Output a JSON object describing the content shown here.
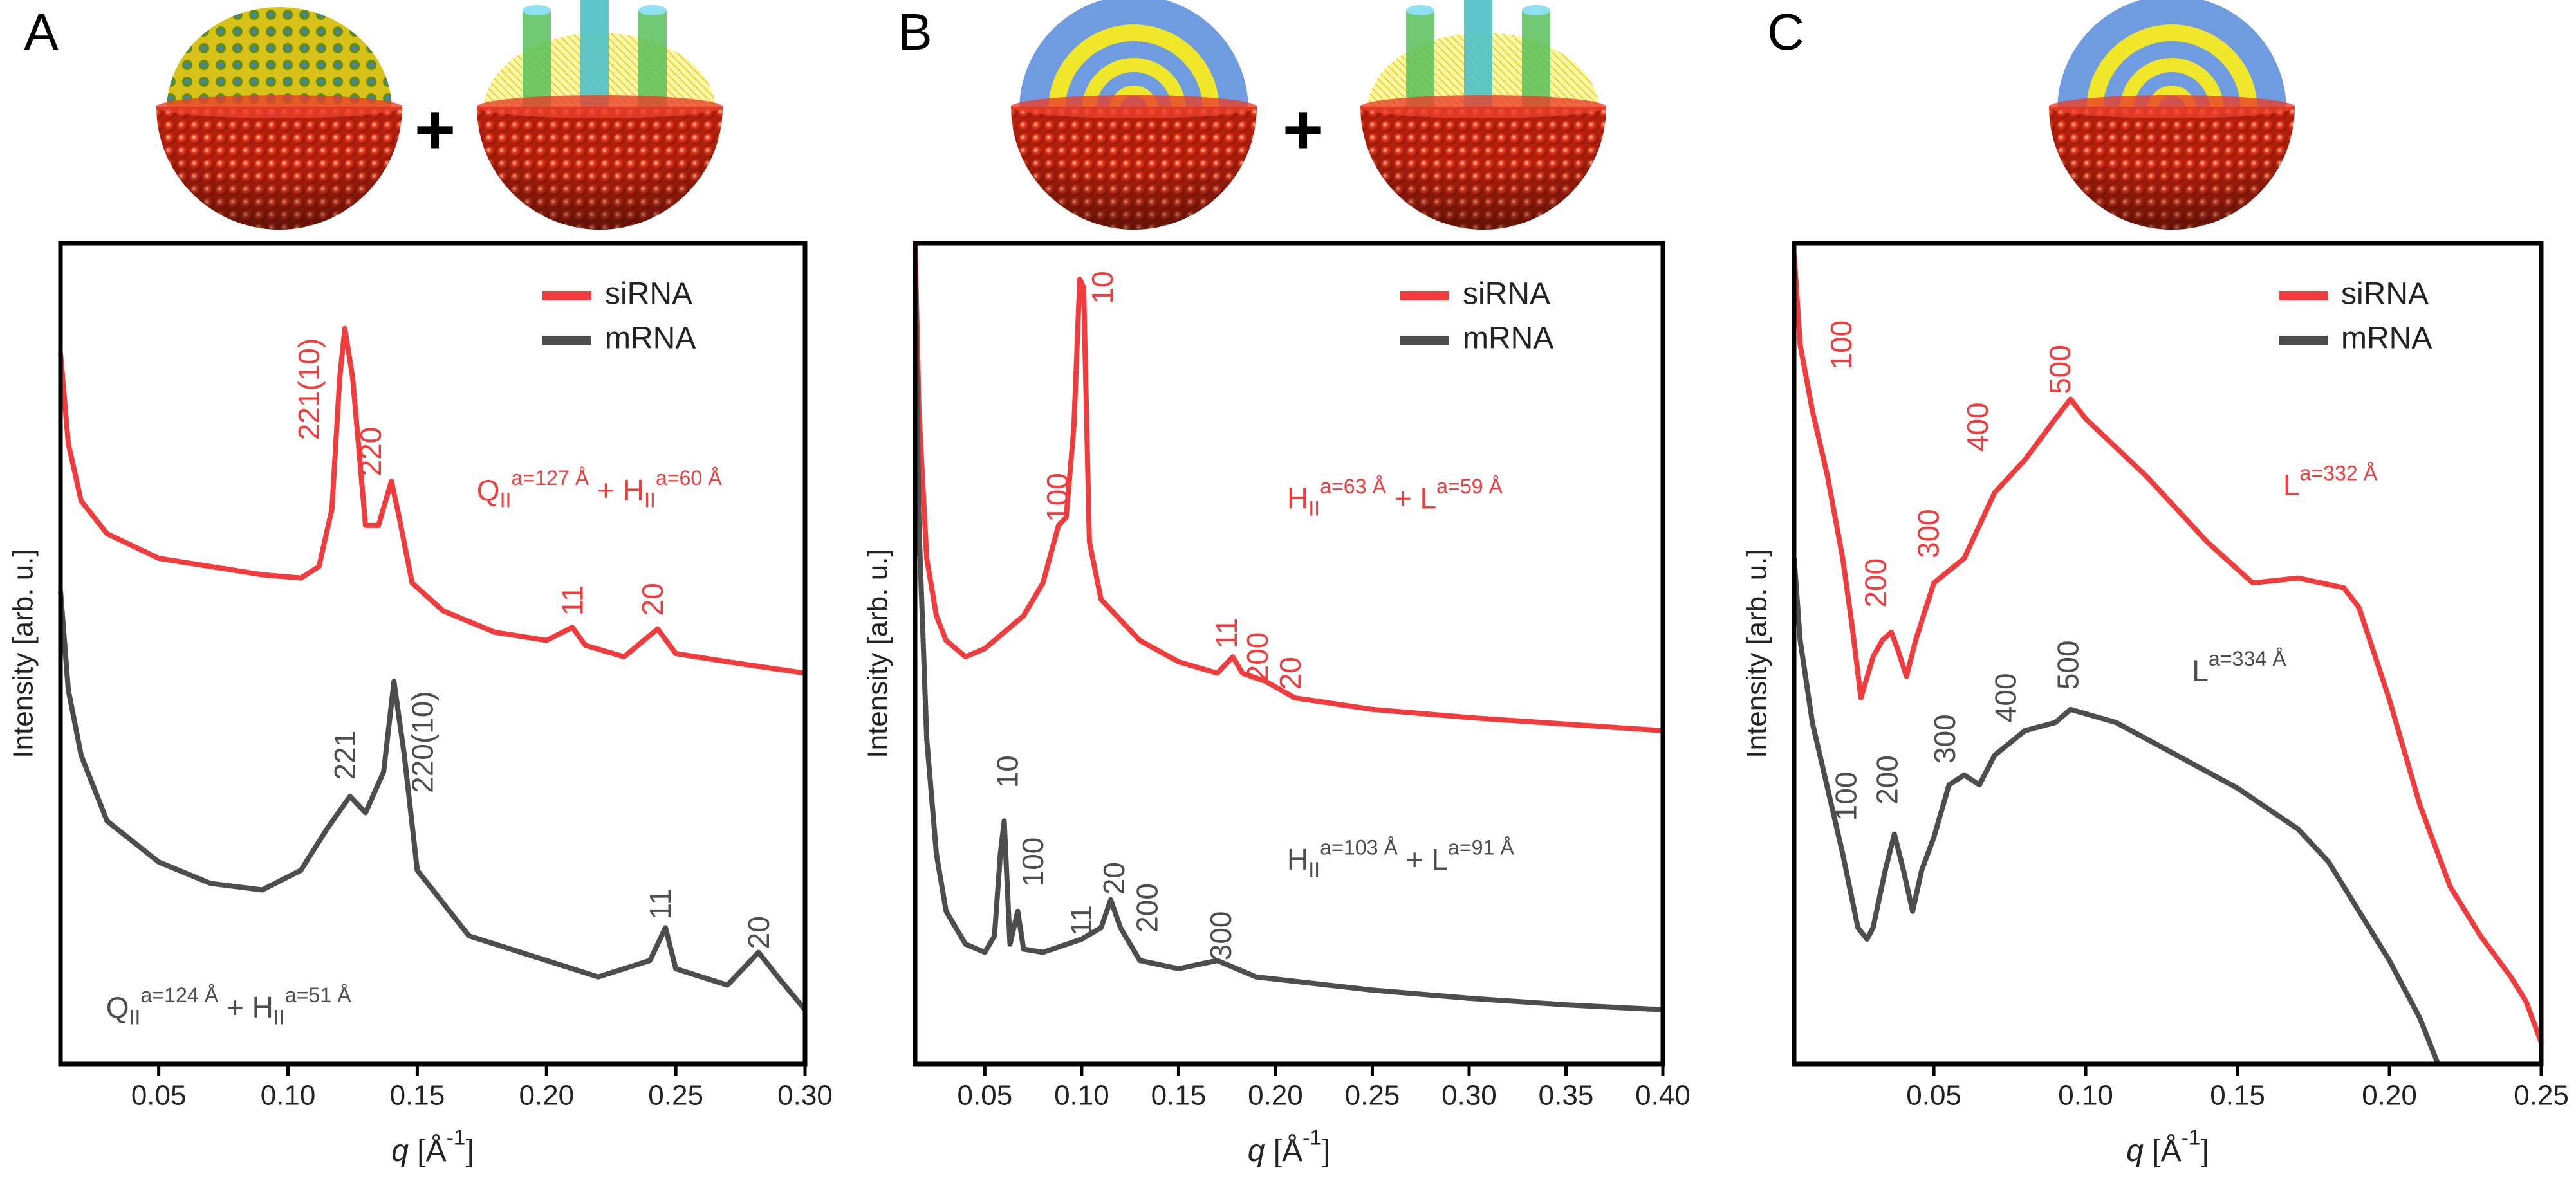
{
  "chart_data": [
    {
      "type": "line",
      "panel_label": "A",
      "scheme_operator": "+",
      "y_label": "Intensity [arb. u.]",
      "x_label": [
        {
          "text": "q",
          "style": "italic"
        },
        {
          "text": " [Å"
        },
        {
          "text": "-1",
          "pos": "sup"
        },
        {
          "text": "]"
        }
      ],
      "xlim": [
        0.012,
        0.3
      ],
      "ylim": [
        0,
        100
      ],
      "xticks": [
        0.05,
        {
          "value": 0.1,
          "label": "0.10"
        },
        0.15,
        {
          "value": 0.2,
          "label": "0.20"
        },
        0.25,
        {
          "value": 0.3,
          "label": "0.30"
        }
      ],
      "legend": "top-right",
      "series": [
        {
          "name": "siRNA",
          "color": "#f03c3c",
          "x": [
            0.012,
            0.015,
            0.02,
            0.03,
            0.05,
            0.07,
            0.09,
            0.105,
            0.112,
            0.117,
            0.12,
            0.122,
            0.125,
            0.13,
            0.135,
            0.14,
            0.143,
            0.148,
            0.16,
            0.18,
            0.2,
            0.21,
            0.215,
            0.23,
            0.243,
            0.25,
            0.27,
            0.3
          ],
          "values": [
            86.6,
            75.6,
            68.6,
            64.6,
            61.6,
            60.6,
            59.6,
            59.2,
            60.6,
            67.6,
            83.6,
            89.6,
            83.6,
            65.6,
            65.6,
            71,
            66.6,
            58.6,
            55.2,
            52.6,
            51.6,
            53.2,
            51,
            49.6,
            53,
            50,
            49,
            47.6
          ]
        },
        {
          "name": "mRNA",
          "color": "#4d4d4d",
          "x": [
            0.012,
            0.015,
            0.02,
            0.03,
            0.05,
            0.07,
            0.09,
            0.105,
            0.115,
            0.124,
            0.13,
            0.137,
            0.141,
            0.145,
            0.15,
            0.17,
            0.2,
            0.22,
            0.24,
            0.246,
            0.25,
            0.27,
            0.282,
            0.29,
            0.3
          ],
          "values": [
            57.6,
            45.6,
            37.6,
            29.6,
            24.6,
            22,
            21.2,
            23.6,
            28.6,
            32.6,
            30.6,
            35.6,
            46.6,
            37.6,
            23.6,
            15.6,
            12.6,
            10.6,
            12.6,
            16.6,
            11.6,
            9.6,
            13.6,
            10.4,
            6.6
          ]
        }
      ],
      "peak_labels": [
        {
          "text": "221(10)",
          "x": 0.109,
          "y": 76,
          "color": "#f03c3c"
        },
        {
          "text": "220",
          "x": 0.133,
          "y": 71.6,
          "color": "#f03c3c"
        },
        {
          "text": "11",
          "x": 0.211,
          "y": 54.6,
          "color": "#f03c3c"
        },
        {
          "text": "20",
          "x": 0.242,
          "y": 54.6,
          "color": "#f03c3c"
        },
        {
          "text": "221",
          "x": 0.123,
          "y": 34.6,
          "color": "#4d4d4d"
        },
        {
          "text": "220(10)",
          "x": 0.153,
          "y": 33,
          "color": "#4d4d4d"
        },
        {
          "text": "11",
          "x": 0.245,
          "y": 17.6,
          "color": "#4d4d4d"
        },
        {
          "text": "20",
          "x": 0.283,
          "y": 14,
          "color": "#4d4d4d"
        }
      ],
      "phase_labels": [
        {
          "x": 0.173,
          "y": 69.6,
          "color": "#f03c3c",
          "parts": [
            {
              "text": "Q"
            },
            {
              "text": "II",
              "pos": "sub"
            },
            {
              "text": "a=127 Å",
              "pos": "sup"
            },
            {
              "text": " + H"
            },
            {
              "text": "II",
              "pos": "sub"
            },
            {
              "text": "a=60 Å",
              "pos": "sup"
            }
          ]
        },
        {
          "x": 0.0296,
          "y": 6.6,
          "color": "#4d4d4d",
          "parts": [
            {
              "text": "Q"
            },
            {
              "text": "II",
              "pos": "sub"
            },
            {
              "text": "a=124 Å",
              "pos": "sup"
            },
            {
              "text": " + H"
            },
            {
              "text": "II",
              "pos": "sub"
            },
            {
              "text": "a=51 Å",
              "pos": "sup"
            }
          ]
        }
      ]
    },
    {
      "type": "line",
      "panel_label": "B",
      "scheme_operator": "+",
      "y_label": "Intensity [arb. u.]",
      "x_label": [
        {
          "text": "q",
          "style": "italic"
        },
        {
          "text": " [Å"
        },
        {
          "text": "-1",
          "pos": "sup"
        },
        {
          "text": "]"
        }
      ],
      "xlim": [
        0.014,
        0.4
      ],
      "ylim": [
        0,
        100
      ],
      "xticks": [
        0.05,
        {
          "value": 0.1,
          "label": "0.10"
        },
        0.15,
        {
          "value": 0.2,
          "label": "0.20"
        },
        0.25,
        {
          "value": 0.3,
          "label": "0.30"
        },
        0.35,
        {
          "value": 0.4,
          "label": "0.40"
        }
      ],
      "legend": "top-right",
      "series": [
        {
          "name": "siRNA",
          "color": "#f03c3c",
          "x": [
            0.014,
            0.016,
            0.02,
            0.025,
            0.03,
            0.04,
            0.05,
            0.06,
            0.07,
            0.08,
            0.088,
            0.092,
            0.096,
            0.099,
            0.101,
            0.104,
            0.11,
            0.13,
            0.15,
            0.17,
            0.178,
            0.183,
            0.195,
            0.21,
            0.25,
            0.3,
            0.35,
            0.4
          ],
          "values": [
            100,
            79.6,
            61.6,
            54.6,
            51.6,
            49.6,
            50.6,
            52.6,
            54.6,
            58.6,
            65.6,
            66.6,
            77.6,
            95.6,
            94.6,
            63.6,
            56.6,
            51.6,
            49,
            47.6,
            49.6,
            47.6,
            46.6,
            44.6,
            43.2,
            42.2,
            41.4,
            40.6
          ]
        },
        {
          "name": "mRNA",
          "color": "#4d4d4d",
          "x": [
            0.014,
            0.016,
            0.02,
            0.025,
            0.03,
            0.04,
            0.05,
            0.055,
            0.058,
            0.06,
            0.063,
            0.067,
            0.07,
            0.08,
            0.1,
            0.11,
            0.115,
            0.12,
            0.13,
            0.15,
            0.17,
            0.19,
            0.25,
            0.3,
            0.35,
            0.4
          ],
          "values": [
            97.6,
            65.6,
            39.6,
            25.6,
            18.6,
            14.6,
            13.6,
            15.6,
            25.6,
            29.6,
            14.6,
            18.6,
            14,
            13.6,
            15.2,
            16.6,
            20,
            16.6,
            12.6,
            11.6,
            12.6,
            10.6,
            9,
            8,
            7.2,
            6.6
          ]
        }
      ],
      "peak_labels": [
        {
          "text": "10",
          "x": 0.112,
          "y": 92.6,
          "color": "#f03c3c"
        },
        {
          "text": "100",
          "x": 0.0887,
          "y": 66,
          "color": "#f03c3c"
        },
        {
          "text": "11",
          "x": 0.176,
          "y": 50.6,
          "color": "#f03c3c"
        },
        {
          "text": "200",
          "x": 0.192,
          "y": 46.6,
          "color": "#f03c3c"
        },
        {
          "text": "20",
          "x": 0.209,
          "y": 45.6,
          "color": "#f03c3c"
        },
        {
          "text": "10",
          "x": 0.063,
          "y": 33.6,
          "color": "#4d4d4d"
        },
        {
          "text": "100",
          "x": 0.076,
          "y": 21.6,
          "color": "#4d4d4d"
        },
        {
          "text": "11",
          "x": 0.101,
          "y": 15.6,
          "color": "#4d4d4d"
        },
        {
          "text": "20",
          "x": 0.118,
          "y": 20.6,
          "color": "#4d4d4d"
        },
        {
          "text": "200",
          "x": 0.135,
          "y": 16,
          "color": "#4d4d4d"
        },
        {
          "text": "300",
          "x": 0.173,
          "y": 12.6,
          "color": "#4d4d4d"
        }
      ],
      "phase_labels": [
        {
          "x": 0.206,
          "y": 68.6,
          "color": "#f03c3c",
          "parts": [
            {
              "text": "H"
            },
            {
              "text": "II",
              "pos": "sub"
            },
            {
              "text": "a=63 Å",
              "pos": "sup"
            },
            {
              "text": " + L"
            },
            {
              "text": "a=59 Å",
              "pos": "sup"
            }
          ]
        },
        {
          "x": 0.206,
          "y": 24.6,
          "color": "#4d4d4d",
          "parts": [
            {
              "text": "H"
            },
            {
              "text": "II",
              "pos": "sub"
            },
            {
              "text": "a=103 Å",
              "pos": "sup"
            },
            {
              "text": " + L"
            },
            {
              "text": "a=91 Å",
              "pos": "sup"
            }
          ]
        }
      ]
    },
    {
      "type": "line",
      "panel_label": "C",
      "y_label": "Intensity [arb. u.]",
      "x_label": [
        {
          "text": "q",
          "style": "italic"
        },
        {
          "text": " [Å"
        },
        {
          "text": "-1",
          "pos": "sup"
        },
        {
          "text": "]"
        }
      ],
      "xlim": [
        0.004,
        0.25
      ],
      "ylim": [
        0,
        100
      ],
      "xticks": [
        0.05,
        {
          "value": 0.1,
          "label": "0.10"
        },
        0.15,
        {
          "value": 0.2,
          "label": "0.20"
        },
        0.25
      ],
      "legend": "top-right",
      "series": [
        {
          "name": "siRNA",
          "color": "#f03c3c",
          "x": [
            0.004,
            0.006,
            0.01,
            0.015,
            0.02,
            0.023,
            0.026,
            0.03,
            0.033,
            0.036,
            0.038,
            0.041,
            0.044,
            0.05,
            0.06,
            0.07,
            0.08,
            0.09,
            0.095,
            0.1,
            0.12,
            0.14,
            0.155,
            0.17,
            0.185,
            0.19,
            0.2,
            0.21,
            0.22,
            0.23,
            0.24,
            0.245,
            0.25
          ],
          "values": [
            98.6,
            87.6,
            79.6,
            71.6,
            61.6,
            53.6,
            44.6,
            49.6,
            51.6,
            52.6,
            50.6,
            47.2,
            51.6,
            58.6,
            61.6,
            69.6,
            73.6,
            78.6,
            81,
            78.6,
            71.6,
            63.6,
            58.6,
            59.2,
            58,
            55.6,
            44.4,
            31.6,
            21.6,
            15.6,
            10.6,
            7.6,
            2.6
          ]
        },
        {
          "name": "mRNA",
          "color": "#4d4d4d",
          "x": [
            0.004,
            0.006,
            0.01,
            0.015,
            0.02,
            0.025,
            0.028,
            0.03,
            0.034,
            0.037,
            0.04,
            0.043,
            0.046,
            0.05,
            0.055,
            0.06,
            0.065,
            0.07,
            0.08,
            0.09,
            0.095,
            0.11,
            0.13,
            0.15,
            0.17,
            0.18,
            0.19,
            0.2,
            0.21,
            0.216
          ],
          "values": [
            61.6,
            51.6,
            41.6,
            33.6,
            25.6,
            16.6,
            15.2,
            16.6,
            23.6,
            28,
            23.6,
            18.6,
            23.6,
            27.6,
            34,
            35.2,
            34,
            37.6,
            40.6,
            41.6,
            43.2,
            41.6,
            37.6,
            33.6,
            28.6,
            24.6,
            18.6,
            12.6,
            5.6,
            0
          ]
        }
      ],
      "peak_labels": [
        {
          "text": "100",
          "x": 0.0203,
          "y": 84.6,
          "color": "#f03c3c"
        },
        {
          "text": "200",
          "x": 0.0316,
          "y": 55.6,
          "color": "#f03c3c"
        },
        {
          "text": "300",
          "x": 0.049,
          "y": 61.6,
          "color": "#f03c3c"
        },
        {
          "text": "400",
          "x": 0.0652,
          "y": 74.6,
          "color": "#f03c3c"
        },
        {
          "text": "500",
          "x": 0.0923,
          "y": 81.6,
          "color": "#f03c3c"
        },
        {
          "text": "100",
          "x": 0.0219,
          "y": 29.6,
          "color": "#4d4d4d"
        },
        {
          "text": "200",
          "x": 0.0354,
          "y": 31.6,
          "color": "#4d4d4d"
        },
        {
          "text": "300",
          "x": 0.0544,
          "y": 36.6,
          "color": "#4d4d4d"
        },
        {
          "text": "400",
          "x": 0.0744,
          "y": 41.6,
          "color": "#4d4d4d"
        },
        {
          "text": "500",
          "x": 0.095,
          "y": 45.6,
          "color": "#4d4d4d"
        }
      ],
      "phase_labels": [
        {
          "x": 0.165,
          "y": 70.2,
          "color": "#f03c3c",
          "parts": [
            {
              "text": "L"
            },
            {
              "text": "a=332 Å",
              "pos": "sup"
            }
          ]
        },
        {
          "x": 0.135,
          "y": 47.6,
          "color": "#4d4d4d",
          "parts": [
            {
              "text": "L"
            },
            {
              "text": "a=334 Å",
              "pos": "sup"
            }
          ]
        }
      ]
    }
  ]
}
